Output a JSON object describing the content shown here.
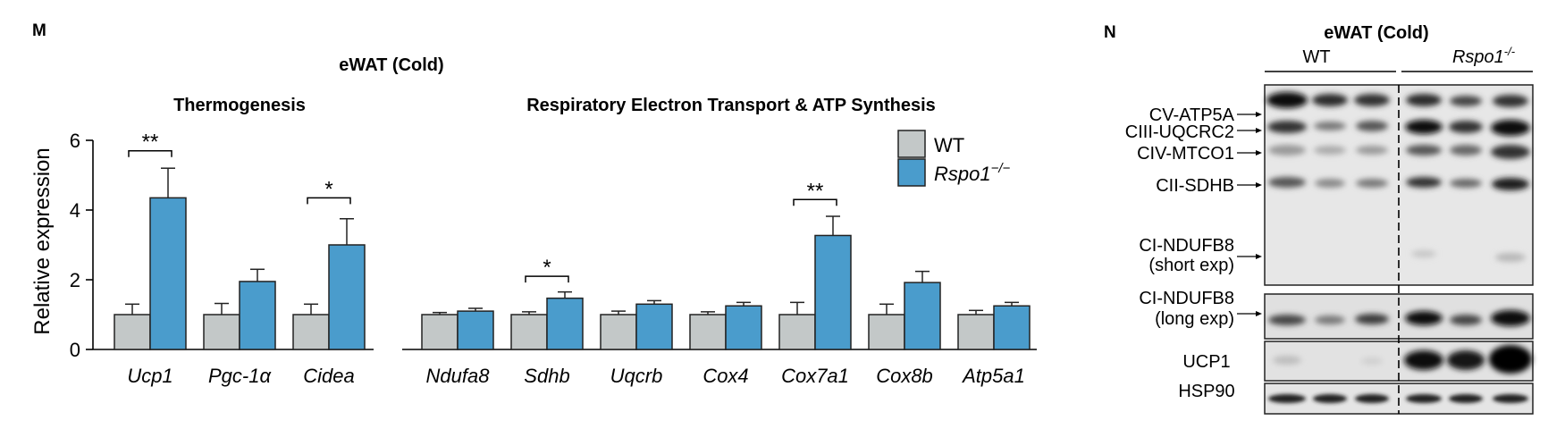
{
  "panel_m": {
    "letter": "M",
    "title": "eWAT (Cold)",
    "ylabel": "Relative expression",
    "groups": [
      "Thermogenesis",
      "Respiratory Electron Transport & ATP Synthesis"
    ],
    "legend": [
      "WT",
      "Rspo1"
    ]
  },
  "chart_data": {
    "type": "bar",
    "title": "eWAT (Cold)",
    "ylabel": "Relative expression",
    "ylim": [
      0,
      6
    ],
    "yticks": [
      0,
      2,
      4,
      6
    ],
    "legend_position": "top-right",
    "colors": {
      "WT": "#c3c8c8",
      "Rspo1": "#4a9ccc"
    },
    "categories": [
      "Ucp1",
      "Pgc-1α",
      "Cidea",
      "Ndufa8",
      "Sdhb",
      "Uqcrb",
      "Cox4",
      "Cox7a1",
      "Cox8b",
      "Atp5a1"
    ],
    "series": [
      {
        "name": "WT",
        "values": [
          1.0,
          1.0,
          1.0,
          1.0,
          1.0,
          1.0,
          1.0,
          1.0,
          1.0,
          1.0
        ],
        "errors": [
          0.3,
          0.32,
          0.3,
          0.06,
          0.08,
          0.1,
          0.08,
          0.35,
          0.3,
          0.12
        ]
      },
      {
        "name": "Rspo1",
        "values": [
          4.35,
          1.95,
          3.0,
          1.1,
          1.47,
          1.3,
          1.25,
          3.27,
          1.92,
          1.25
        ],
        "errors": [
          0.85,
          0.35,
          0.75,
          0.08,
          0.18,
          0.1,
          0.1,
          0.55,
          0.32,
          0.1
        ]
      }
    ],
    "significance": [
      {
        "category": "Ucp1",
        "label": "**",
        "y": 5.7
      },
      {
        "category": "Cidea",
        "label": "*",
        "y": 4.35
      },
      {
        "category": "Sdhb",
        "label": "*",
        "y": 2.1
      },
      {
        "category": "Cox7a1",
        "label": "**",
        "y": 4.3
      }
    ]
  },
  "panel_n": {
    "letter": "N",
    "title": "eWAT (Cold)",
    "wt_label": "WT",
    "ko_label": "Rspo1",
    "bands": [
      "CV-ATP5A",
      "CIII-UQCRC2",
      "CIV-MTCO1",
      "CII-SDHB",
      "CI-NDUFB8",
      "(short exp)",
      "CI-NDUFB8",
      "(long exp)",
      "UCP1",
      "HSP90"
    ]
  }
}
